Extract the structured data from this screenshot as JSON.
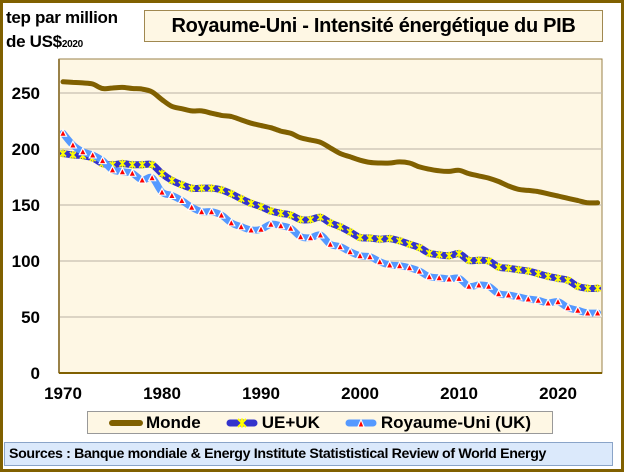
{
  "chart_data": {
    "type": "line",
    "title": "Royaume-Uni - Intensité énergétique du PIB",
    "ylabel": "tep par million de US$",
    "ylabel_line1": "tep par million",
    "ylabel_line2": "de US$",
    "ylabel_sub": "2020",
    "xlabel": "",
    "ylim": [
      0,
      270
    ],
    "xlim": [
      1970,
      2024
    ],
    "yticks": [
      0,
      50,
      100,
      150,
      200,
      250
    ],
    "xticks": [
      1970,
      1980,
      1990,
      2000,
      2010,
      2020
    ],
    "grid": true,
    "legend_position": "bottom",
    "x": [
      1970,
      1971,
      1972,
      1973,
      1974,
      1975,
      1976,
      1977,
      1978,
      1979,
      1980,
      1981,
      1982,
      1983,
      1984,
      1985,
      1986,
      1987,
      1988,
      1989,
      1990,
      1991,
      1992,
      1993,
      1994,
      1995,
      1996,
      1997,
      1998,
      1999,
      2000,
      2001,
      2002,
      2003,
      2004,
      2005,
      2006,
      2007,
      2008,
      2009,
      2010,
      2011,
      2012,
      2013,
      2014,
      2015,
      2016,
      2017,
      2018,
      2019,
      2020,
      2021,
      2022,
      2023,
      2024
    ],
    "series": [
      {
        "name": "Monde",
        "color": "#806000",
        "marker": "none",
        "values": [
          260,
          259.5,
          259,
          258,
          254,
          254.5,
          255,
          254,
          253.5,
          251,
          244,
          238,
          236,
          234,
          234,
          232,
          230,
          229,
          226,
          223,
          221,
          219,
          216,
          214,
          210,
          208,
          206,
          201,
          196,
          193,
          190,
          188,
          187.5,
          187.5,
          188.5,
          187.5,
          184,
          182,
          180.5,
          180,
          181,
          178,
          176,
          174,
          171,
          167,
          164,
          163,
          162,
          160,
          158,
          156,
          154,
          152,
          152
        ]
      },
      {
        "name": "UE+UK",
        "color": "#3333cc",
        "marker": "yellow-star",
        "marker_color": "#ffff00",
        "values": [
          196,
          194.6,
          194,
          192,
          187,
          186,
          187,
          186,
          186,
          186,
          178,
          172,
          168,
          165,
          165,
          165,
          163.5,
          160,
          155.5,
          151.5,
          148.5,
          144.6,
          142.6,
          141,
          137,
          137,
          139,
          134,
          130.5,
          126,
          121,
          120.5,
          119.5,
          120,
          118,
          115,
          112,
          107,
          105.5,
          104.7,
          106.5,
          100.6,
          100.6,
          100,
          94.6,
          93.5,
          92.2,
          91,
          88.7,
          86.3,
          84.5,
          82.8,
          77.4,
          75.6,
          75.6
        ]
      },
      {
        "name": "Royaume-Uni (UK)",
        "color": "#5599ff",
        "marker": "red-triangle",
        "marker_color": "#ff0000",
        "values": [
          214,
          203.6,
          197.6,
          194.6,
          189.6,
          181.3,
          179.7,
          178.3,
          172.3,
          174.4,
          161.5,
          158.5,
          154,
          148,
          144,
          144,
          141,
          134,
          130.6,
          127.7,
          128.3,
          132.8,
          131.5,
          129.2,
          121.7,
          120.8,
          123.2,
          114.9,
          112.8,
          108.3,
          104.7,
          103.8,
          99.4,
          96.4,
          95.8,
          94,
          91,
          86,
          85,
          83.9,
          84.5,
          77.4,
          78.6,
          77.4,
          70.8,
          69.6,
          67.9,
          66.1,
          64.9,
          62.5,
          63.7,
          58.3,
          56,
          53.6,
          53.6
        ]
      }
    ],
    "source": "Sources : Banque mondiale & Energy Institute Statististical Review of World Energy"
  },
  "colors": {
    "frame": "#806000",
    "plot_bg": "#fef7e4",
    "gridline": "#c8c0b0",
    "title_bg": "#fef7e4",
    "sources_bg": "#dbe9fb"
  }
}
